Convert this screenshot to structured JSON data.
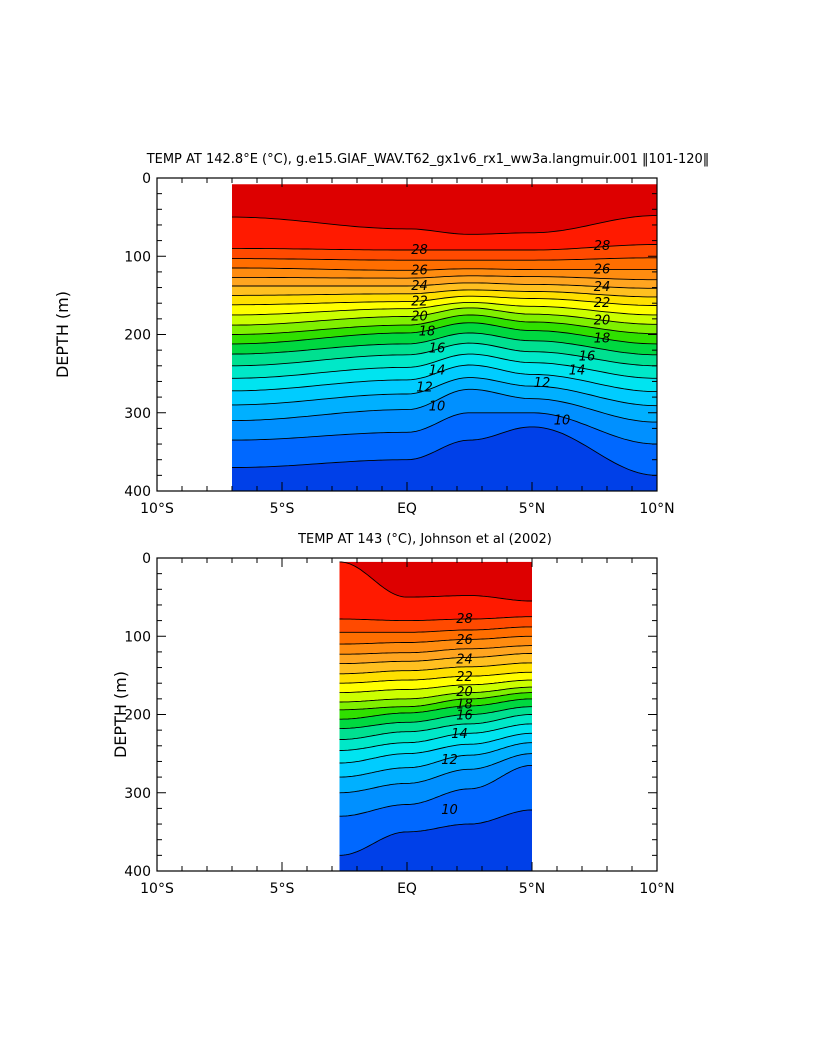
{
  "chart_data": [
    {
      "type": "contour",
      "title": "TEMP AT 142.8°E (°C), g.e15.GIAF_WAV.T62_gx1v6_rx1_ww3a.langmuir.001 ‖101-120‖",
      "xlabel": "",
      "ylabel": "DEPTH (m)",
      "xlim": [
        -10,
        10
      ],
      "ylim": [
        400,
        0
      ],
      "x_ticks": [
        -10,
        -5,
        0,
        5,
        10
      ],
      "x_tick_labels": [
        "10°S",
        "5°S",
        "EQ",
        "5°N",
        "10°N"
      ],
      "y_ticks": [
        0,
        100,
        200,
        300,
        400
      ],
      "y_tick_labels": [
        "0",
        "100",
        "200",
        "300",
        "400"
      ],
      "data_x_range": [
        -7,
        10
      ],
      "data_depth_range": [
        8,
        400
      ],
      "contour_interval_c": 1,
      "depth_profiles": [
        {
          "lat": -7,
          "isotherm_depths": {
            "29": 50,
            "28": 90,
            "27": 103,
            "26": 115,
            "25": 127,
            "24": 138,
            "23": 150,
            "22": 162,
            "21": 175,
            "20": 188,
            "19": 200,
            "18": 212,
            "17": 225,
            "16": 240,
            "15": 256,
            "14": 272,
            "13": 290,
            "12": 310,
            "11": 335,
            "10": 370
          }
        },
        {
          "lat": 0,
          "isotherm_depths": {
            "29": 65,
            "28": 92,
            "27": 105,
            "26": 118,
            "25": 128,
            "24": 138,
            "23": 148,
            "22": 158,
            "21": 167,
            "20": 177,
            "19": 188,
            "18": 198,
            "17": 212,
            "16": 226,
            "15": 242,
            "14": 258,
            "13": 276,
            "12": 296,
            "11": 325,
            "10": 360
          }
        },
        {
          "lat": 2.5,
          "isotherm_depths": {
            "29": 72,
            "28": 92,
            "27": 105,
            "26": 116,
            "25": 125,
            "24": 134,
            "23": 143,
            "22": 151,
            "21": 159,
            "20": 166,
            "19": 175,
            "18": 185,
            "17": 198,
            "16": 211,
            "15": 225,
            "14": 239,
            "13": 255,
            "12": 270,
            "11": 300,
            "10": 335
          }
        },
        {
          "lat": 5,
          "isotherm_depths": {
            "29": 70,
            "28": 92,
            "27": 105,
            "26": 117,
            "25": 126,
            "24": 136,
            "23": 145,
            "22": 154,
            "21": 164,
            "20": 174,
            "19": 184,
            "18": 195,
            "17": 208,
            "16": 222,
            "15": 236,
            "14": 251,
            "13": 266,
            "12": 282,
            "11": 300,
            "10": 318
          }
        },
        {
          "lat": 10,
          "isotherm_depths": {
            "29": 48,
            "28": 85,
            "27": 102,
            "26": 117,
            "25": 130,
            "24": 141,
            "23": 152,
            "22": 163,
            "21": 175,
            "20": 187,
            "19": 199,
            "18": 212,
            "17": 226,
            "16": 240,
            "15": 256,
            "14": 273,
            "13": 291,
            "12": 312,
            "11": 340,
            "10": 380
          }
        }
      ],
      "contour_labels": [
        {
          "value": "28",
          "lat": 0.5,
          "depth": 92
        },
        {
          "value": "28",
          "lat": 7.8,
          "depth": 87
        },
        {
          "value": "26",
          "lat": 0.5,
          "depth": 118
        },
        {
          "value": "26",
          "lat": 7.8,
          "depth": 117
        },
        {
          "value": "24",
          "lat": 0.5,
          "depth": 138
        },
        {
          "value": "24",
          "lat": 7.8,
          "depth": 139
        },
        {
          "value": "22",
          "lat": 0.5,
          "depth": 158
        },
        {
          "value": "22",
          "lat": 7.8,
          "depth": 160
        },
        {
          "value": "20",
          "lat": 0.5,
          "depth": 177
        },
        {
          "value": "20",
          "lat": 7.8,
          "depth": 182
        },
        {
          "value": "18",
          "lat": 0.8,
          "depth": 196
        },
        {
          "value": "18",
          "lat": 7.8,
          "depth": 205
        },
        {
          "value": "16",
          "lat": 1.2,
          "depth": 218
        },
        {
          "value": "16",
          "lat": 7.2,
          "depth": 228
        },
        {
          "value": "14",
          "lat": 1.2,
          "depth": 246
        },
        {
          "value": "14",
          "lat": 6.8,
          "depth": 246
        },
        {
          "value": "12",
          "lat": 0.7,
          "depth": 268
        },
        {
          "value": "12",
          "lat": 5.4,
          "depth": 262
        },
        {
          "value": "10",
          "lat": 1.2,
          "depth": 292
        },
        {
          "value": "10",
          "lat": 6.2,
          "depth": 310
        }
      ]
    },
    {
      "type": "contour",
      "title": "TEMP AT 143 (°C), Johnson et al (2002)",
      "xlabel": "",
      "ylabel": "DEPTH (m)",
      "xlim": [
        -10,
        10
      ],
      "ylim": [
        400,
        0
      ],
      "x_ticks": [
        -10,
        -5,
        0,
        5,
        10
      ],
      "x_tick_labels": [
        "10°S",
        "5°S",
        "EQ",
        "5°N",
        "10°N"
      ],
      "y_ticks": [
        0,
        100,
        200,
        300,
        400
      ],
      "y_tick_labels": [
        "0",
        "100",
        "200",
        "300",
        "400"
      ],
      "data_x_range": [
        -2.7,
        5
      ],
      "data_depth_range": [
        5,
        400
      ],
      "contour_interval_c": 1,
      "depth_profiles": [
        {
          "lat": -2.7,
          "isotherm_depths": {
            "29": 5,
            "28": 78,
            "27": 95,
            "26": 110,
            "25": 123,
            "24": 135,
            "23": 148,
            "22": 160,
            "21": 172,
            "20": 184,
            "19": 194,
            "18": 206,
            "17": 218,
            "16": 232,
            "15": 246,
            "14": 262,
            "13": 280,
            "12": 300,
            "11": 330,
            "10": 380
          }
        },
        {
          "lat": 0,
          "isotherm_depths": {
            "29": 50,
            "28": 80,
            "27": 95,
            "26": 108,
            "25": 121,
            "24": 132,
            "23": 144,
            "22": 156,
            "21": 168,
            "20": 180,
            "19": 190,
            "18": 198,
            "17": 210,
            "16": 222,
            "15": 236,
            "14": 250,
            "13": 268,
            "12": 288,
            "11": 315,
            "10": 350
          }
        },
        {
          "lat": 2.5,
          "isotherm_depths": {
            "29": 48,
            "28": 78,
            "27": 92,
            "26": 104,
            "25": 116,
            "24": 127,
            "23": 139,
            "22": 151,
            "21": 162,
            "20": 172,
            "19": 180,
            "18": 189,
            "17": 200,
            "16": 212,
            "15": 224,
            "14": 238,
            "13": 252,
            "12": 270,
            "11": 295,
            "10": 340
          }
        },
        {
          "lat": 5,
          "isotherm_depths": {
            "29": 55,
            "28": 75,
            "27": 88,
            "26": 100,
            "25": 112,
            "24": 122,
            "23": 134,
            "22": 146,
            "21": 156,
            "20": 165,
            "19": 172,
            "18": 180,
            "17": 190,
            "16": 200,
            "15": 212,
            "14": 224,
            "13": 236,
            "12": 250,
            "11": 265,
            "10": 322
          }
        }
      ],
      "contour_labels": [
        {
          "value": "28",
          "lat": 2.3,
          "depth": 78
        },
        {
          "value": "26",
          "lat": 2.3,
          "depth": 105
        },
        {
          "value": "24",
          "lat": 2.3,
          "depth": 130
        },
        {
          "value": "22",
          "lat": 2.3,
          "depth": 152
        },
        {
          "value": "20",
          "lat": 2.3,
          "depth": 171
        },
        {
          "value": "18",
          "lat": 2.3,
          "depth": 187
        },
        {
          "value": "16",
          "lat": 2.3,
          "depth": 201
        },
        {
          "value": "14",
          "lat": 2.1,
          "depth": 225
        },
        {
          "value": "12",
          "lat": 1.7,
          "depth": 258
        },
        {
          "value": "10",
          "lat": 1.7,
          "depth": 322
        }
      ]
    }
  ],
  "colors": {
    "isotherm_fill": {
      "29": "#dd0000",
      "28": "#ff1a00",
      "27": "#ff4a00",
      "26": "#ff6e00",
      "25": "#ff8c10",
      "24": "#ffa520",
      "23": "#ffc020",
      "22": "#ffe000",
      "21": "#ffff00",
      "20": "#ccff00",
      "19": "#80f000",
      "18": "#30e000",
      "17": "#00d840",
      "16": "#00e090",
      "15": "#00e8c8",
      "14": "#00e4f0",
      "13": "#00ccff",
      "12": "#00b0ff",
      "11": "#0090ff",
      "10": "#0068ff",
      "below": "#0040e8"
    },
    "contour_line": "#000000",
    "axis": "#000000"
  }
}
